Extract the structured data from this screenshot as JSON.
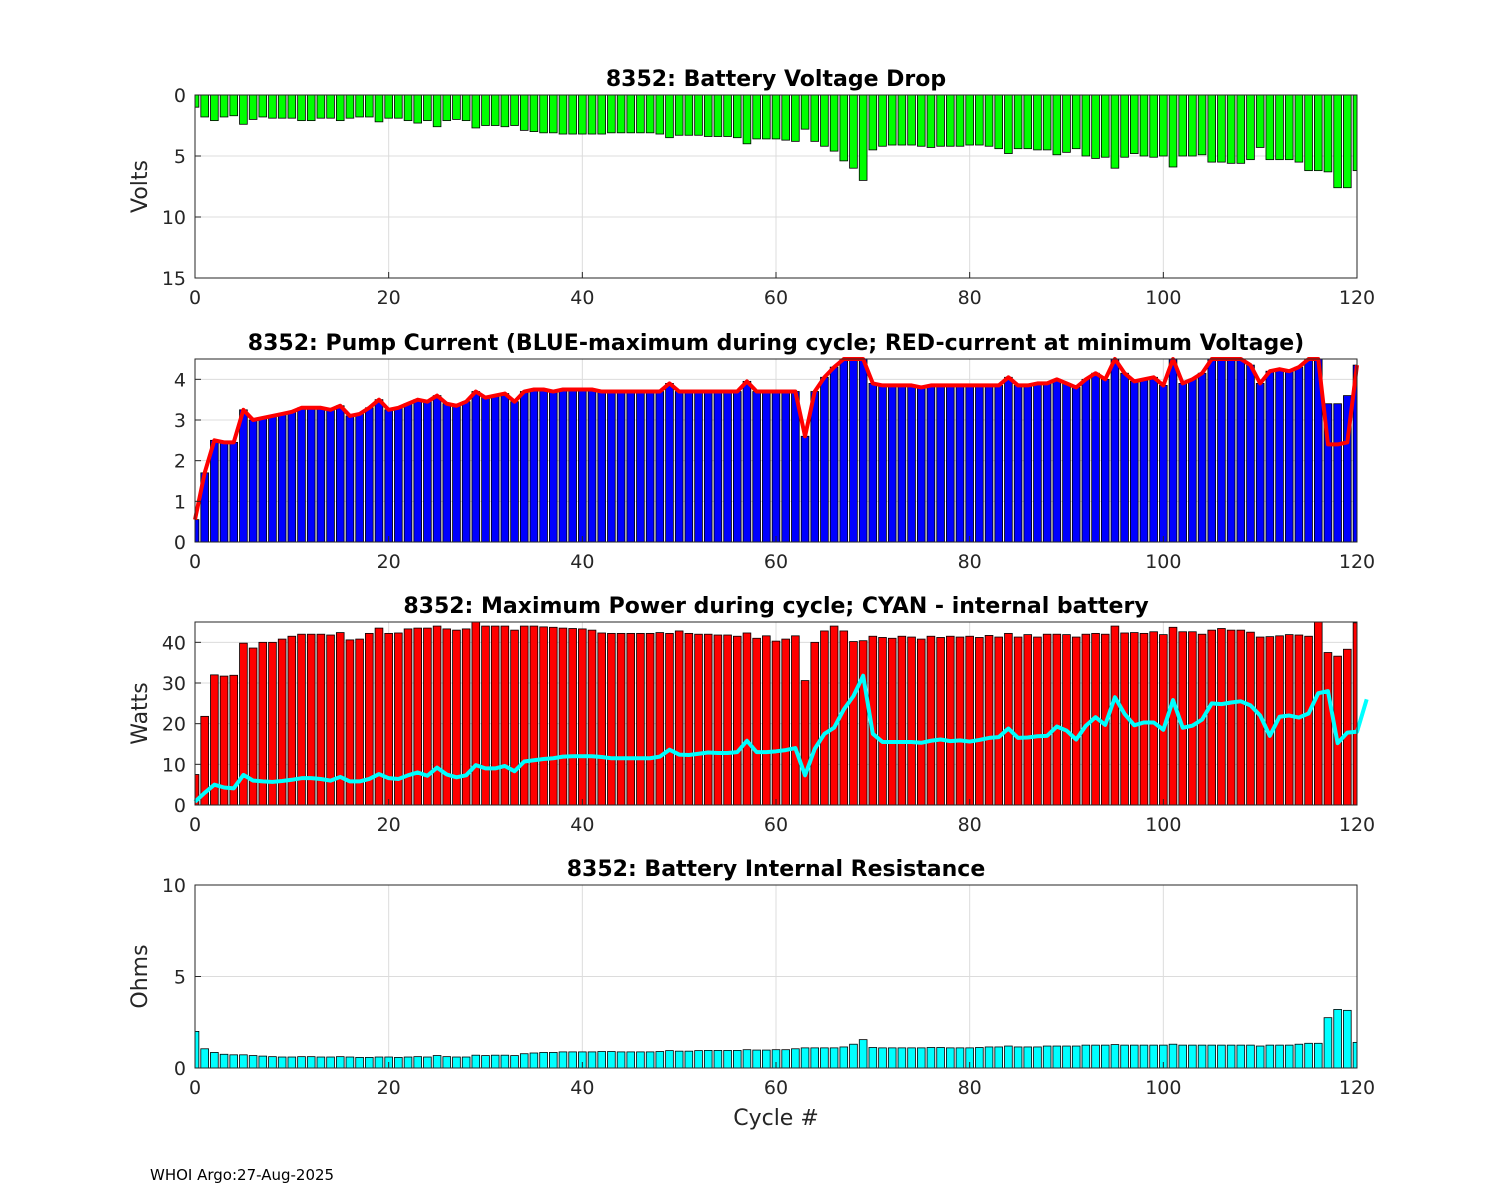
{
  "footer": "WHOI Argo:27-Aug-2025",
  "chart_data": [
    {
      "id": "voltage",
      "type": "bar",
      "title": "8352: Battery Voltage Drop",
      "xlabel": "",
      "ylabel": "Volts",
      "xlim": [
        0,
        120
      ],
      "ylim": [
        0,
        15
      ],
      "y_reversed": true,
      "xticks": [
        0,
        20,
        40,
        60,
        80,
        100,
        120
      ],
      "yticks": [
        0,
        5,
        10,
        15
      ],
      "bar_color": "#00ff00",
      "values": [
        1.0,
        1.8,
        2.1,
        1.8,
        1.7,
        2.4,
        2.0,
        1.8,
        1.9,
        1.9,
        1.9,
        2.1,
        2.1,
        1.9,
        1.9,
        2.1,
        1.9,
        1.8,
        1.8,
        2.2,
        1.9,
        1.9,
        2.1,
        2.3,
        2.1,
        2.6,
        2.1,
        2.0,
        2.1,
        2.7,
        2.5,
        2.5,
        2.6,
        2.5,
        2.9,
        3.0,
        3.1,
        3.1,
        3.2,
        3.2,
        3.2,
        3.2,
        3.2,
        3.1,
        3.1,
        3.1,
        3.1,
        3.1,
        3.2,
        3.5,
        3.3,
        3.3,
        3.3,
        3.4,
        3.4,
        3.4,
        3.5,
        4.0,
        3.6,
        3.6,
        3.6,
        3.7,
        3.8,
        2.8,
        3.8,
        4.2,
        4.6,
        5.4,
        6.0,
        7.0,
        4.5,
        4.2,
        4.1,
        4.1,
        4.1,
        4.2,
        4.3,
        4.2,
        4.2,
        4.2,
        4.1,
        4.1,
        4.2,
        4.4,
        4.8,
        4.4,
        4.4,
        4.5,
        4.5,
        4.9,
        4.7,
        4.4,
        5.0,
        5.2,
        5.1,
        6.0,
        5.1,
        4.8,
        5.0,
        5.1,
        5.0,
        5.9,
        5.0,
        5.0,
        4.9,
        5.5,
        5.5,
        5.6,
        5.6,
        5.3,
        4.3,
        5.3,
        5.3,
        5.3,
        5.5,
        6.2,
        6.2,
        6.3,
        7.6,
        7.6,
        6.2
      ]
    },
    {
      "id": "current",
      "type": "bar",
      "title": "8352: Pump Current (BLUE-maximum during cycle; RED-current at minimum Voltage)",
      "xlabel": "",
      "ylabel": "",
      "xlim": [
        0,
        120
      ],
      "ylim": [
        0,
        4.5
      ],
      "xticks": [
        0,
        20,
        40,
        60,
        80,
        100,
        120
      ],
      "yticks": [
        0,
        1,
        2,
        3,
        4
      ],
      "bar_color": "#0000ff",
      "line_color": "#ff0000",
      "series": [
        {
          "name": "maximum during cycle",
          "values": [
            0.55,
            1.7,
            2.5,
            2.45,
            2.45,
            3.25,
            3.0,
            3.05,
            3.1,
            3.15,
            3.2,
            3.3,
            3.3,
            3.3,
            3.25,
            3.35,
            3.1,
            3.15,
            3.3,
            3.5,
            3.25,
            3.3,
            3.4,
            3.5,
            3.45,
            3.6,
            3.4,
            3.35,
            3.45,
            3.7,
            3.55,
            3.6,
            3.65,
            3.45,
            3.7,
            3.75,
            3.75,
            3.7,
            3.75,
            3.75,
            3.75,
            3.75,
            3.7,
            3.7,
            3.7,
            3.7,
            3.7,
            3.7,
            3.7,
            3.9,
            3.7,
            3.7,
            3.7,
            3.7,
            3.7,
            3.7,
            3.7,
            3.95,
            3.7,
            3.7,
            3.7,
            3.7,
            3.7,
            2.6,
            3.7,
            4.05,
            4.3,
            4.55,
            4.6,
            4.55,
            3.9,
            3.85,
            3.85,
            3.85,
            3.85,
            3.8,
            3.85,
            3.85,
            3.85,
            3.85,
            3.85,
            3.85,
            3.85,
            3.85,
            4.05,
            3.85,
            3.85,
            3.9,
            3.9,
            4.0,
            3.9,
            3.8,
            4.0,
            4.15,
            4.0,
            4.55,
            4.15,
            3.95,
            4.0,
            4.05,
            3.85,
            4.5,
            3.9,
            4.0,
            4.15,
            4.55,
            4.55,
            4.55,
            4.55,
            4.35,
            3.9,
            4.2,
            4.25,
            4.2,
            4.3,
            4.55,
            4.6,
            3.4,
            3.4,
            3.6,
            4.35
          ]
        },
        {
          "name": "current at minimum Voltage",
          "values": [
            0.55,
            1.7,
            2.5,
            2.45,
            2.45,
            3.25,
            3.0,
            3.05,
            3.1,
            3.15,
            3.2,
            3.3,
            3.3,
            3.3,
            3.25,
            3.35,
            3.1,
            3.15,
            3.3,
            3.5,
            3.25,
            3.3,
            3.4,
            3.5,
            3.45,
            3.6,
            3.4,
            3.35,
            3.45,
            3.7,
            3.55,
            3.6,
            3.65,
            3.45,
            3.7,
            3.75,
            3.75,
            3.7,
            3.75,
            3.75,
            3.75,
            3.75,
            3.7,
            3.7,
            3.7,
            3.7,
            3.7,
            3.7,
            3.7,
            3.9,
            3.7,
            3.7,
            3.7,
            3.7,
            3.7,
            3.7,
            3.7,
            3.95,
            3.7,
            3.7,
            3.7,
            3.7,
            3.7,
            2.6,
            3.7,
            4.05,
            4.3,
            4.55,
            4.6,
            4.55,
            3.9,
            3.85,
            3.85,
            3.85,
            3.85,
            3.8,
            3.85,
            3.85,
            3.85,
            3.85,
            3.85,
            3.85,
            3.85,
            3.85,
            4.05,
            3.85,
            3.85,
            3.9,
            3.9,
            4.0,
            3.9,
            3.8,
            4.0,
            4.15,
            4.0,
            4.55,
            4.15,
            3.95,
            4.0,
            4.05,
            3.85,
            4.5,
            3.9,
            4.0,
            4.15,
            4.55,
            4.55,
            4.55,
            4.55,
            4.35,
            3.9,
            4.2,
            4.25,
            4.2,
            4.3,
            4.55,
            4.6,
            2.4,
            2.4,
            2.45,
            4.35
          ]
        }
      ]
    },
    {
      "id": "power",
      "type": "bar",
      "title": "8352: Maximum Power during cycle; CYAN - internal battery",
      "xlabel": "",
      "ylabel": "Watts",
      "xlim": [
        0,
        120
      ],
      "ylim": [
        0,
        45
      ],
      "xticks": [
        0,
        20,
        40,
        60,
        80,
        100,
        120
      ],
      "yticks": [
        0,
        10,
        20,
        30,
        40
      ],
      "bar_color": "#ff0000",
      "line_color": "#00ffff",
      "series": [
        {
          "name": "maximum power",
          "values": [
            7.5,
            21.8,
            32.0,
            31.7,
            31.9,
            39.8,
            38.6,
            40.0,
            40.0,
            40.8,
            41.5,
            42.0,
            42.0,
            42.0,
            41.8,
            42.4,
            40.6,
            40.8,
            42.2,
            43.5,
            42.2,
            42.3,
            43.3,
            43.5,
            43.5,
            44.0,
            43.3,
            43.0,
            43.3,
            45.0,
            44.0,
            44.0,
            44.0,
            43.0,
            44.0,
            44.0,
            43.8,
            43.7,
            43.5,
            43.4,
            43.3,
            43.0,
            42.3,
            42.2,
            42.2,
            42.2,
            42.2,
            42.2,
            42.4,
            42.2,
            42.8,
            42.2,
            42.0,
            42.0,
            41.8,
            41.8,
            41.5,
            42.3,
            41.0,
            41.6,
            40.3,
            40.8,
            41.6,
            30.6,
            40.0,
            42.8,
            44.0,
            42.8,
            40.2,
            40.4,
            41.5,
            41.2,
            41.0,
            41.5,
            41.3,
            40.8,
            41.5,
            41.2,
            41.5,
            41.3,
            41.5,
            41.2,
            41.7,
            41.3,
            42.2,
            41.3,
            41.9,
            41.3,
            42.0,
            42.0,
            41.9,
            41.3,
            42.0,
            42.2,
            42.0,
            44.0,
            42.3,
            42.4,
            42.2,
            42.6,
            41.9,
            43.7,
            42.6,
            42.6,
            42.0,
            43.0,
            43.4,
            43.0,
            43.0,
            42.5,
            41.3,
            41.4,
            41.6,
            41.9,
            41.8,
            41.5,
            45.5,
            37.5,
            36.6,
            38.3,
            44.8
          ]
        },
        {
          "name": "internal battery",
          "values": [
            0.8,
            3.0,
            5.0,
            4.3,
            4.1,
            7.4,
            6.0,
            5.8,
            5.7,
            5.9,
            6.2,
            6.6,
            6.6,
            6.4,
            6.0,
            6.9,
            5.8,
            5.8,
            6.4,
            7.6,
            6.6,
            6.4,
            7.3,
            8.0,
            7.2,
            9.2,
            7.5,
            6.8,
            7.3,
            9.8,
            9.0,
            9.0,
            9.6,
            8.3,
            10.7,
            11.0,
            11.3,
            11.5,
            11.9,
            12.0,
            12.0,
            12.0,
            11.8,
            11.5,
            11.5,
            11.5,
            11.5,
            11.5,
            11.9,
            13.6,
            12.4,
            12.3,
            12.6,
            12.9,
            12.8,
            12.8,
            13.0,
            15.8,
            13.0,
            13.0,
            13.2,
            13.5,
            14.0,
            7.3,
            13.8,
            17.5,
            19.0,
            23.5,
            26.8,
            31.8,
            17.5,
            15.5,
            15.5,
            15.5,
            15.5,
            15.3,
            15.8,
            16.1,
            15.7,
            15.9,
            15.6,
            16.0,
            16.5,
            16.7,
            18.8,
            16.5,
            16.6,
            16.9,
            17.0,
            19.3,
            18.3,
            16.1,
            19.5,
            21.6,
            19.7,
            26.5,
            22.4,
            19.6,
            20.3,
            20.3,
            18.5,
            25.8,
            19.0,
            19.5,
            21.0,
            25.0,
            24.8,
            25.2,
            25.5,
            24.5,
            22.0,
            17.0,
            21.7,
            22.0,
            21.5,
            22.5,
            27.5,
            28.0,
            15.2,
            17.8,
            18.0,
            26.0
          ]
        }
      ]
    },
    {
      "id": "resistance",
      "type": "bar",
      "title": "8352: Battery Internal Resistance",
      "xlabel": "Cycle #",
      "ylabel": "Ohms",
      "xlim": [
        0,
        120
      ],
      "ylim": [
        0,
        10
      ],
      "xticks": [
        0,
        20,
        40,
        60,
        80,
        100,
        120
      ],
      "yticks": [
        0,
        5,
        10
      ],
      "bar_color": "#00ffff",
      "values": [
        2.0,
        1.05,
        0.85,
        0.75,
        0.72,
        0.72,
        0.68,
        0.65,
        0.62,
        0.6,
        0.6,
        0.62,
        0.62,
        0.6,
        0.6,
        0.62,
        0.6,
        0.58,
        0.58,
        0.6,
        0.6,
        0.58,
        0.6,
        0.62,
        0.6,
        0.68,
        0.62,
        0.6,
        0.6,
        0.7,
        0.68,
        0.7,
        0.7,
        0.68,
        0.78,
        0.82,
        0.85,
        0.85,
        0.88,
        0.88,
        0.88,
        0.88,
        0.9,
        0.9,
        0.88,
        0.88,
        0.88,
        0.88,
        0.9,
        0.95,
        0.92,
        0.92,
        0.95,
        0.96,
        0.96,
        0.96,
        0.96,
        1.0,
        0.98,
        0.98,
        1.0,
        1.0,
        1.05,
        1.1,
        1.1,
        1.1,
        1.1,
        1.15,
        1.3,
        1.55,
        1.12,
        1.1,
        1.1,
        1.1,
        1.1,
        1.1,
        1.12,
        1.12,
        1.1,
        1.1,
        1.1,
        1.12,
        1.15,
        1.15,
        1.2,
        1.15,
        1.15,
        1.15,
        1.2,
        1.2,
        1.2,
        1.2,
        1.25,
        1.25,
        1.25,
        1.28,
        1.25,
        1.25,
        1.25,
        1.25,
        1.25,
        1.3,
        1.25,
        1.25,
        1.25,
        1.25,
        1.25,
        1.25,
        1.25,
        1.25,
        1.2,
        1.25,
        1.25,
        1.25,
        1.3,
        1.35,
        1.35,
        2.75,
        3.2,
        3.15,
        1.4
      ]
    }
  ]
}
